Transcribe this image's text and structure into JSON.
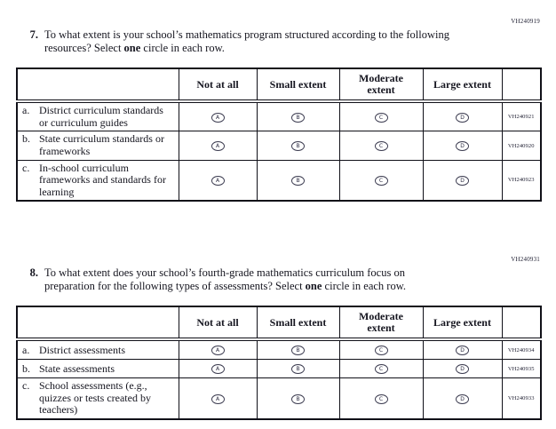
{
  "page": {
    "background_color": "#ffffff",
    "ink_color": "#15151f"
  },
  "bubbles": [
    "A",
    "B",
    "C",
    "D"
  ],
  "q7": {
    "vh_code": "VH240919",
    "number": "7.",
    "prompt_part1": "To what extent is your school’s mathematics program structured according to the following resources? Select ",
    "prompt_bold": "one",
    "prompt_part2": " circle in each row.",
    "columns": [
      "Not at all",
      "Small extent",
      "Moderate extent",
      "Large extent"
    ],
    "rows": [
      {
        "letter": "a.",
        "label": "District curriculum standards or curriculum guides",
        "code": "VH240921"
      },
      {
        "letter": "b.",
        "label": "State curriculum standards or frameworks",
        "code": "VH240920"
      },
      {
        "letter": "c.",
        "label": "In-school curriculum frameworks and standards for learning",
        "code": "VH240923"
      }
    ]
  },
  "q8": {
    "vh_code": "VH240931",
    "number": "8.",
    "prompt_part1": "To what extent does your school’s fourth-grade mathematics curriculum focus on preparation for the following types of assessments? Select ",
    "prompt_bold": "one",
    "prompt_part2": " circle in each row.",
    "columns": [
      "Not at all",
      "Small extent",
      "Moderate extent",
      "Large extent"
    ],
    "rows": [
      {
        "letter": "a.",
        "label": "District assessments",
        "code": "VH240934"
      },
      {
        "letter": "b.",
        "label": "State assessments",
        "code": "VH240935"
      },
      {
        "letter": "c.",
        "label": "School assessments (e.g., quizzes or tests created by teachers)",
        "code": "VH240933"
      }
    ]
  }
}
